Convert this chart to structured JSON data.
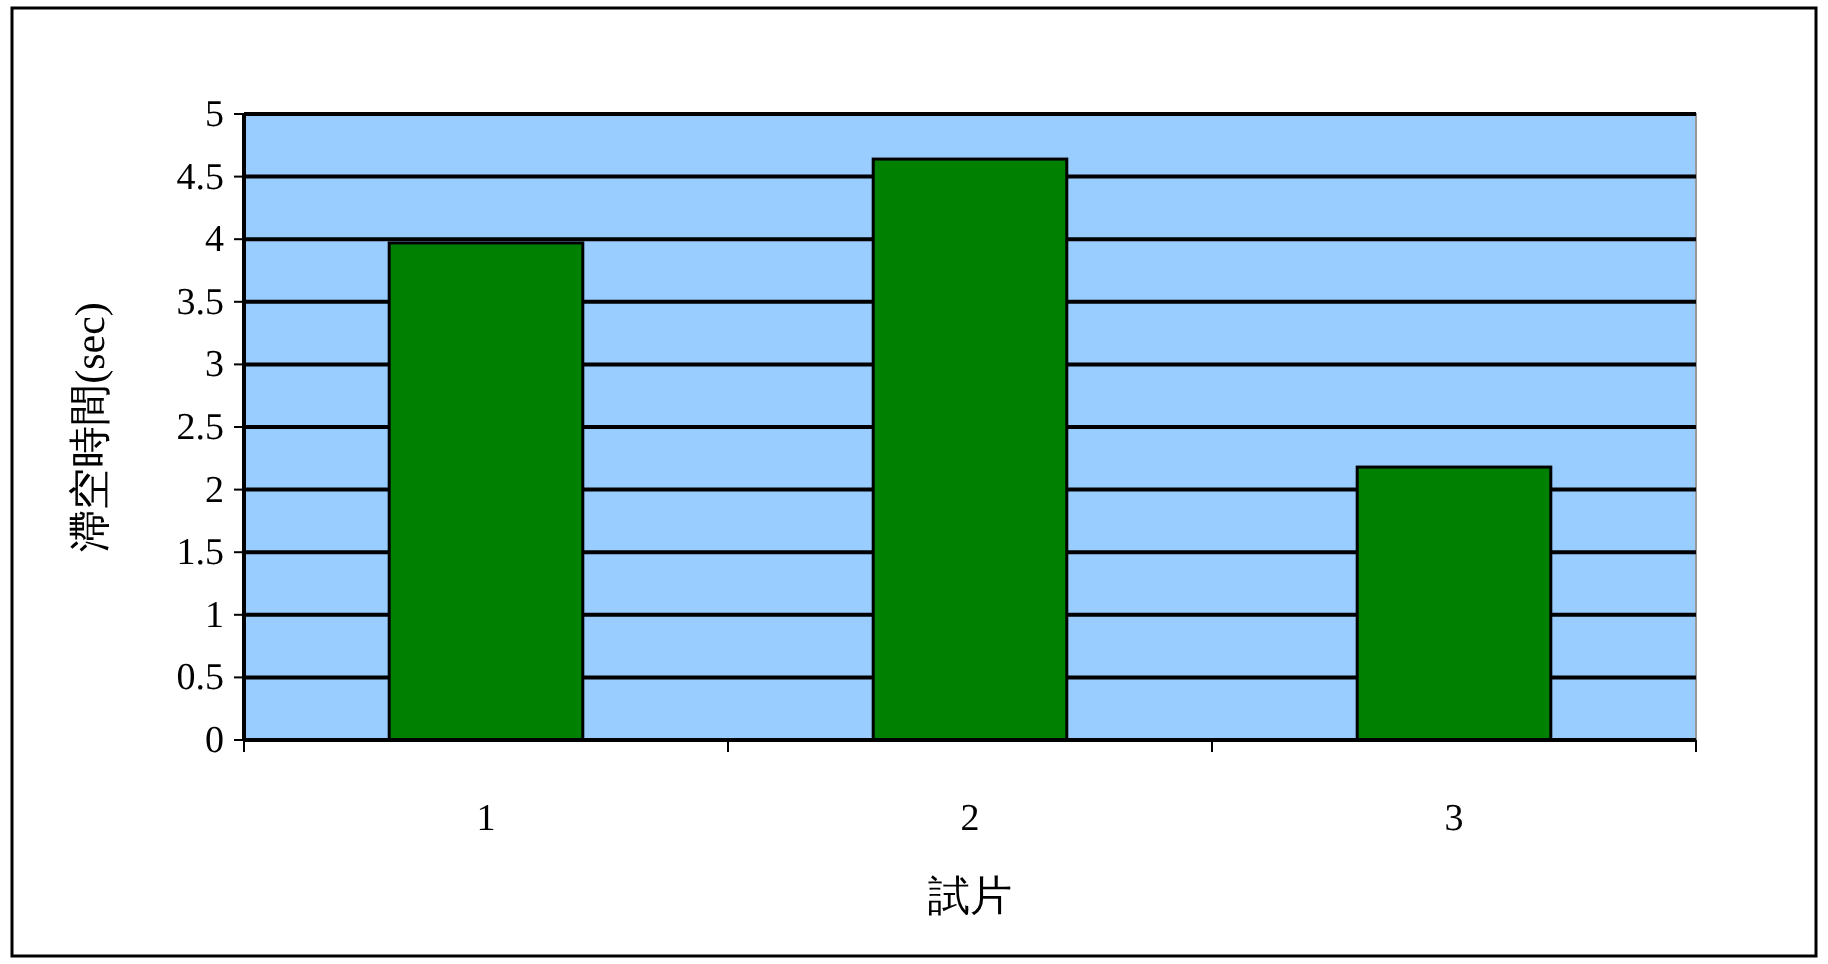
{
  "chart_data": {
    "type": "bar",
    "xlabel": "試片",
    "ylabel": "滯空時間(sec)",
    "categories": [
      "1",
      "2",
      "3"
    ],
    "values": [
      3.97,
      4.64,
      2.18
    ],
    "color": "#008000",
    "ylim": [
      0,
      5
    ],
    "yticks": [
      0,
      0.5,
      1,
      1.5,
      2,
      2.5,
      3,
      3.5,
      4,
      4.5,
      5
    ],
    "grid": "y"
  }
}
